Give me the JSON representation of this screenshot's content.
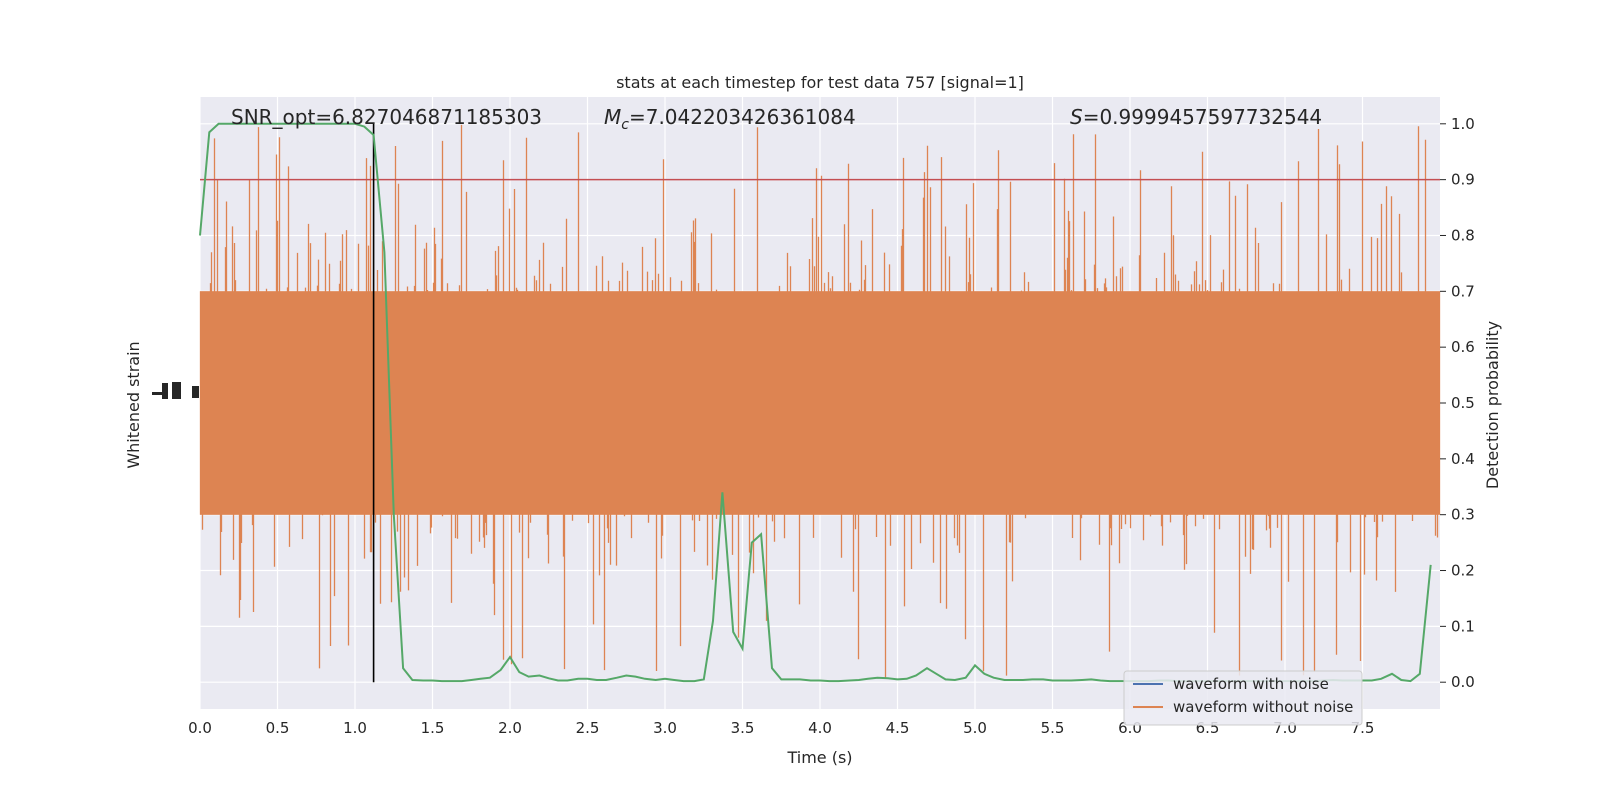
{
  "chart_data": {
    "type": "line",
    "title": "stats at each timestep for test data 757 [signal=1]",
    "xlabel": "Time (s)",
    "ylabel_left": "Whitened strain",
    "ylabel_right": "Detection probability",
    "xlim": [
      0.0,
      8.0
    ],
    "ylim_right": [
      -0.048,
      1.048
    ],
    "x_ticks": [
      0.0,
      0.5,
      1.0,
      1.5,
      2.0,
      2.5,
      3.0,
      3.5,
      4.0,
      4.5,
      5.0,
      5.5,
      6.0,
      6.5,
      7.0,
      7.5
    ],
    "x_tick_labels": [
      "0.0",
      "0.5",
      "1.0",
      "1.5",
      "2.0",
      "2.5",
      "3.0",
      "3.5",
      "4.0",
      "4.5",
      "5.0",
      "5.5",
      "6.0",
      "6.5",
      "7.0",
      "7.5"
    ],
    "y_ticks_right": [
      0.0,
      0.1,
      0.2,
      0.3,
      0.4,
      0.5,
      0.6,
      0.7,
      0.8,
      0.9,
      1.0
    ],
    "y_tick_labels_right": [
      "0.0",
      "0.1",
      "0.2",
      "0.3",
      "0.4",
      "0.5",
      "0.6",
      "0.7",
      "0.8",
      "0.9",
      "1.0"
    ],
    "grid": true,
    "legend_position": "lower-right",
    "annotations": {
      "snr": "SNR_opt=6.827046871185303",
      "mc_symbol": "M",
      "mc_sub": "c",
      "mc_value": "=7.042203426361084",
      "s_symbol": "S",
      "s_value": "=0.9999457597732544"
    },
    "threshold": 0.9,
    "merger_time": 1.12,
    "series": [
      {
        "name": "waveform with noise",
        "color": "#4c72b0",
        "y_range": [
          0.1,
          0.99
        ]
      },
      {
        "name": "waveform without noise",
        "color": "#dd8452",
        "y_range": [
          0.0,
          1.0
        ]
      },
      {
        "name": "",
        "color": "#55a868",
        "x": [
          0.0,
          0.06,
          0.12,
          0.19,
          0.25,
          0.31,
          0.37,
          0.44,
          0.5,
          0.56,
          0.62,
          0.69,
          0.75,
          0.81,
          0.87,
          0.94,
          1.0,
          1.06,
          1.12,
          1.19,
          1.25,
          1.31,
          1.37,
          1.44,
          1.5,
          1.56,
          1.62,
          1.69,
          1.75,
          1.81,
          1.87,
          1.94,
          2.0,
          2.06,
          2.12,
          2.19,
          2.25,
          2.31,
          2.37,
          2.44,
          2.5,
          2.56,
          2.62,
          2.69,
          2.75,
          2.81,
          2.87,
          2.94,
          3.0,
          3.06,
          3.12,
          3.19,
          3.25,
          3.31,
          3.37,
          3.44,
          3.5,
          3.56,
          3.62,
          3.69,
          3.75,
          3.81,
          3.87,
          3.94,
          4.0,
          4.06,
          4.12,
          4.19,
          4.25,
          4.31,
          4.37,
          4.44,
          4.5,
          4.56,
          4.62,
          4.69,
          4.75,
          4.81,
          4.87,
          4.94,
          5.0,
          5.06,
          5.12,
          5.19,
          5.25,
          5.31,
          5.37,
          5.44,
          5.5,
          5.56,
          5.62,
          5.69,
          5.75,
          5.81,
          5.87,
          5.94,
          6.0,
          6.06,
          6.12,
          6.19,
          6.25,
          6.31,
          6.37,
          6.44,
          6.5,
          6.56,
          6.62,
          6.69,
          6.75,
          6.81,
          6.87,
          6.94,
          7.0,
          7.06,
          7.12,
          7.19,
          7.25,
          7.31,
          7.37,
          7.44,
          7.5,
          7.56,
          7.62,
          7.69,
          7.75,
          7.81,
          7.87,
          7.94
        ],
        "values": [
          0.8,
          0.985,
          1.0,
          1.0,
          1.0,
          1.0,
          1.0,
          1.0,
          1.0,
          1.0,
          1.0,
          1.0,
          1.0,
          1.0,
          1.0,
          1.0,
          1.0,
          0.995,
          0.98,
          0.77,
          0.3,
          0.025,
          0.004,
          0.003,
          0.003,
          0.002,
          0.002,
          0.002,
          0.004,
          0.006,
          0.008,
          0.022,
          0.045,
          0.018,
          0.01,
          0.012,
          0.007,
          0.003,
          0.003,
          0.006,
          0.006,
          0.004,
          0.004,
          0.008,
          0.012,
          0.01,
          0.006,
          0.004,
          0.006,
          0.004,
          0.002,
          0.002,
          0.005,
          0.11,
          0.34,
          0.09,
          0.06,
          0.25,
          0.265,
          0.025,
          0.005,
          0.005,
          0.005,
          0.003,
          0.003,
          0.002,
          0.002,
          0.003,
          0.004,
          0.006,
          0.008,
          0.007,
          0.005,
          0.006,
          0.012,
          0.025,
          0.015,
          0.005,
          0.004,
          0.008,
          0.03,
          0.015,
          0.008,
          0.004,
          0.004,
          0.004,
          0.005,
          0.005,
          0.003,
          0.003,
          0.003,
          0.004,
          0.005,
          0.003,
          0.002,
          0.002,
          0.002,
          0.002,
          0.002,
          0.003,
          0.003,
          0.002,
          0.002,
          0.002,
          0.002,
          0.002,
          0.002,
          0.002,
          0.002,
          0.002,
          0.002,
          0.002,
          0.002,
          0.002,
          0.002,
          0.002,
          0.003,
          0.004,
          0.003,
          0.003,
          0.003,
          0.003,
          0.006,
          0.015,
          0.004,
          0.002,
          0.015,
          0.21
        ]
      }
    ]
  },
  "colors": {
    "plot_background": "#eaeaf2",
    "grid": "#ffffff",
    "threshold_line": "#c44e52",
    "merger_line": "#000000"
  }
}
